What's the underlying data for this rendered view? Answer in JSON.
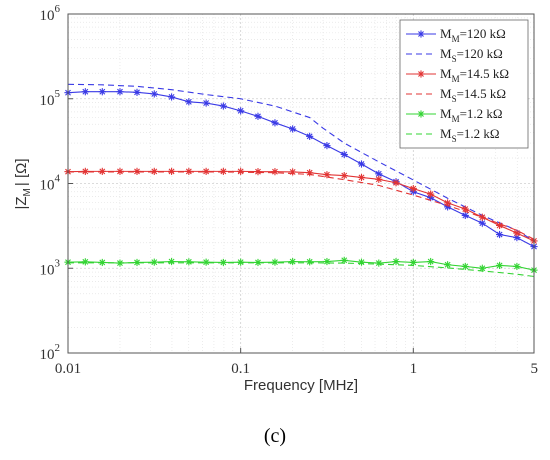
{
  "chart_data": {
    "type": "line",
    "title": "",
    "xlabel": "Frequency [MHz]",
    "ylabel": {
      "main": "|Z",
      "sub": "M",
      "tail": "|  [Ω]"
    },
    "caption": "(c)",
    "x_scale": "log",
    "y_scale": "log",
    "xlim": [
      0.01,
      5
    ],
    "ylim": [
      100,
      1000000
    ],
    "x_ticks": [
      {
        "value": 0.01,
        "label": "0.01"
      },
      {
        "value": 0.1,
        "label": "0.1"
      },
      {
        "value": 1,
        "label": "1"
      },
      {
        "value": 5,
        "label": "5"
      }
    ],
    "y_ticks": [
      {
        "value": 100,
        "base": "10",
        "exp": "2"
      },
      {
        "value": 1000,
        "base": "10",
        "exp": "3"
      },
      {
        "value": 10000,
        "base": "10",
        "exp": "4"
      },
      {
        "value": 100000,
        "base": "10",
        "exp": "5"
      },
      {
        "value": 1000000,
        "base": "10",
        "exp": "6"
      }
    ],
    "grid": true,
    "minor_grid": true,
    "legend_position": "top-right",
    "series": [
      {
        "name": {
          "pre": "M",
          "sub": "M",
          "post": "=120 kΩ"
        },
        "color": "#3a3ae6",
        "style": "solid-marker",
        "x": [
          0.01,
          0.0126,
          0.0158,
          0.02,
          0.0251,
          0.0316,
          0.0398,
          0.0501,
          0.0631,
          0.0794,
          0.1,
          0.126,
          0.158,
          0.2,
          0.251,
          0.316,
          0.398,
          0.501,
          0.631,
          0.794,
          1,
          1.26,
          1.58,
          2,
          2.51,
          3.16,
          3.98,
          5
        ],
        "y": [
          118000,
          121000,
          121000,
          121000,
          119000,
          114000,
          105000,
          92000,
          89000,
          82000,
          72000,
          62000,
          52000,
          44000,
          36000,
          28000,
          22000,
          17000,
          13000,
          10500,
          8000,
          6800,
          5300,
          4200,
          3400,
          2500,
          2300,
          1800
        ]
      },
      {
        "name": {
          "pre": "M",
          "sub": "S",
          "post": "=120 kΩ"
        },
        "color": "#3a3ae6",
        "style": "dashed",
        "x": [
          0.01,
          0.0158,
          0.0251,
          0.0398,
          0.0631,
          0.1,
          0.158,
          0.251,
          0.3,
          0.398,
          0.631,
          1,
          1.58,
          2.51,
          3.98,
          5
        ],
        "y": [
          148000,
          146000,
          140000,
          128000,
          112000,
          100000,
          82000,
          60000,
          45000,
          30000,
          18000,
          11000,
          6700,
          4200,
          2800,
          2100
        ]
      },
      {
        "name": {
          "pre": "M",
          "sub": "M",
          "post": "=14.5 kΩ"
        },
        "color": "#e23434",
        "style": "solid-marker",
        "x": [
          0.01,
          0.0126,
          0.0158,
          0.02,
          0.0251,
          0.0316,
          0.0398,
          0.0501,
          0.0631,
          0.0794,
          0.1,
          0.126,
          0.158,
          0.2,
          0.251,
          0.316,
          0.398,
          0.501,
          0.631,
          0.794,
          1,
          1.26,
          1.58,
          2,
          2.51,
          3.16,
          3.98,
          5
        ],
        "y": [
          13800,
          13900,
          13900,
          13900,
          13900,
          13900,
          13900,
          13900,
          13900,
          13900,
          13900,
          13800,
          13800,
          13700,
          13400,
          12700,
          12400,
          11800,
          11200,
          10200,
          8700,
          7500,
          5900,
          5000,
          4000,
          3200,
          2600,
          2100
        ]
      },
      {
        "name": {
          "pre": "M",
          "sub": "S",
          "post": "=14.5 kΩ"
        },
        "color": "#e23434",
        "style": "dashed",
        "x": [
          0.01,
          0.0251,
          0.0631,
          0.1,
          0.158,
          0.251,
          0.398,
          0.631,
          1,
          1.58,
          2.51,
          3.98,
          5
        ],
        "y": [
          13700,
          13700,
          13700,
          13600,
          13400,
          12800,
          11100,
          9500,
          7300,
          5500,
          4000,
          2800,
          2200
        ]
      },
      {
        "name": {
          "pre": "M",
          "sub": "M",
          "post": "=1.2 kΩ"
        },
        "color": "#33d433",
        "style": "solid-marker",
        "x": [
          0.01,
          0.0126,
          0.0158,
          0.02,
          0.0251,
          0.0316,
          0.0398,
          0.0501,
          0.0631,
          0.0794,
          0.1,
          0.126,
          0.158,
          0.2,
          0.251,
          0.316,
          0.398,
          0.501,
          0.631,
          0.794,
          1,
          1.26,
          1.58,
          2,
          2.51,
          3.16,
          3.98,
          5
        ],
        "y": [
          1180,
          1190,
          1170,
          1150,
          1170,
          1180,
          1200,
          1190,
          1180,
          1170,
          1180,
          1170,
          1180,
          1200,
          1190,
          1200,
          1240,
          1180,
          1150,
          1200,
          1170,
          1200,
          1100,
          1050,
          1000,
          1080,
          1050,
          950
        ]
      },
      {
        "name": {
          "pre": "M",
          "sub": "S",
          "post": "=1.2 kΩ"
        },
        "color": "#33d433",
        "style": "dashed",
        "x": [
          0.01,
          0.0251,
          0.0631,
          0.1,
          0.158,
          0.251,
          0.398,
          0.631,
          1,
          1.58,
          2.51,
          3.98,
          5
        ],
        "y": [
          1160,
          1160,
          1160,
          1160,
          1160,
          1160,
          1150,
          1120,
          1080,
          1010,
          930,
          850,
          800
        ]
      }
    ]
  }
}
